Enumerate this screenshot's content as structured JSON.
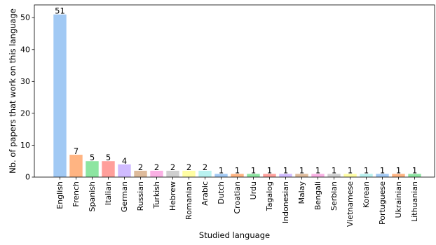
{
  "chart_data": {
    "type": "bar",
    "xlabel": "Studied language",
    "ylabel": "Nb. of papers that work on this language",
    "ylim": [
      0,
      54
    ],
    "yticks": [
      0,
      10,
      20,
      30,
      40,
      50
    ],
    "grid": false,
    "categories": [
      "English",
      "French",
      "Spanish",
      "Italian",
      "German",
      "Russian",
      "Turkish",
      "Hebrew",
      "Romanian",
      "Arabic",
      "Dutch",
      "Croatian",
      "Urdu",
      "Tagalog",
      "Indonesian",
      "Malay",
      "Bengali",
      "Serbian",
      "Vietnamese",
      "Korean",
      "Portuguese",
      "Ukrainian",
      "Lithuanian"
    ],
    "values": [
      51,
      7,
      5,
      5,
      4,
      2,
      2,
      2,
      2,
      2,
      1,
      1,
      1,
      1,
      1,
      1,
      1,
      1,
      1,
      1,
      1,
      1,
      1
    ],
    "colors": [
      "#a1c9f4",
      "#ffb482",
      "#8de5a1",
      "#ff9f9b",
      "#d0bbff",
      "#debb9b",
      "#fab0e4",
      "#cfcfcf",
      "#fffea3",
      "#b9f2f0",
      "#a1c9f4",
      "#ffb482",
      "#8de5a1",
      "#ff9f9b",
      "#d0bbff",
      "#debb9b",
      "#fab0e4",
      "#cfcfcf",
      "#fffea3",
      "#b9f2f0",
      "#a1c9f4",
      "#ffb482",
      "#8de5a1"
    ]
  }
}
